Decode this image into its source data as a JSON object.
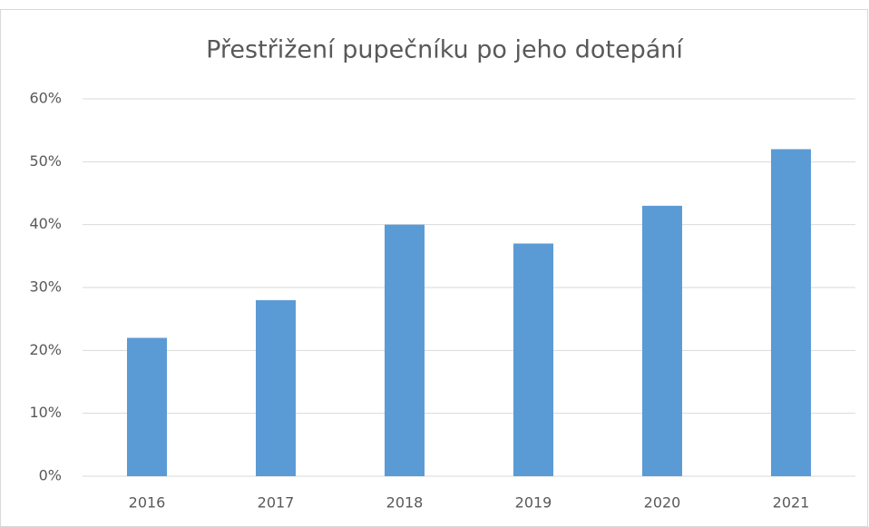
{
  "chart_data": {
    "type": "bar",
    "title": "Přestřižení pupečníku po jeho dotepání",
    "categories": [
      "2016",
      "2017",
      "2018",
      "2019",
      "2020",
      "2021"
    ],
    "values": [
      22,
      28,
      40,
      37,
      43,
      52
    ],
    "color": "#5b9bd5",
    "ylim": [
      0,
      60
    ],
    "yticks": [
      {
        "value": 0,
        "label": "0%"
      },
      {
        "value": 10,
        "label": "10%"
      },
      {
        "value": 20,
        "label": "20%"
      },
      {
        "value": 30,
        "label": "30%"
      },
      {
        "value": 40,
        "label": "40%"
      },
      {
        "value": 50,
        "label": "50%"
      },
      {
        "value": 60,
        "label": "60%"
      }
    ],
    "grid": true
  }
}
